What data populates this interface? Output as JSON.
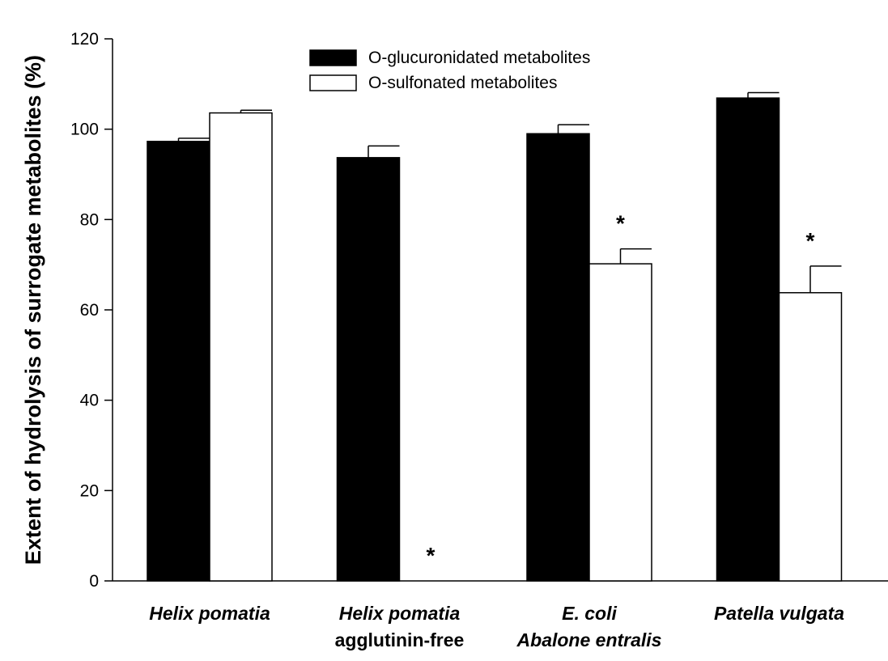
{
  "chart_data": {
    "type": "bar",
    "title": "",
    "xlabel": "",
    "ylabel": "Extent of hydrolysis of surrogate metabolites (%)",
    "ylim": [
      0,
      120
    ],
    "yticks": [
      0,
      20,
      40,
      60,
      80,
      100,
      120
    ],
    "grid": false,
    "legend_position": "top-center",
    "categories": [
      {
        "line1": "Helix pomatia",
        "line2": "",
        "line1_italic": true,
        "line2_italic": false
      },
      {
        "line1": "Helix pomatia",
        "line2": "agglutinin-free",
        "line1_italic": true,
        "line2_italic": false
      },
      {
        "line1": "E. coli",
        "line2": "Abalone entralis",
        "line1_italic": true,
        "line2_italic": true
      },
      {
        "line1": "Patella vulgata",
        "line2": "",
        "line1_italic": true,
        "line2_italic": false
      }
    ],
    "series": [
      {
        "name": "O-glucuronidated metabolites",
        "color": "#000000",
        "values": [
          97.3,
          93.7,
          99.0,
          106.9
        ],
        "errors": [
          0.7,
          2.6,
          2.0,
          1.2
        ],
        "significant": [
          false,
          false,
          false,
          false
        ]
      },
      {
        "name": "O-sulfonated metabolites",
        "color": "#ffffff",
        "values": [
          103.6,
          0,
          70.2,
          63.8
        ],
        "errors": [
          0.6,
          0,
          3.3,
          5.9
        ],
        "significant": [
          false,
          true,
          true,
          true
        ]
      }
    ],
    "significance_marker": "*"
  }
}
